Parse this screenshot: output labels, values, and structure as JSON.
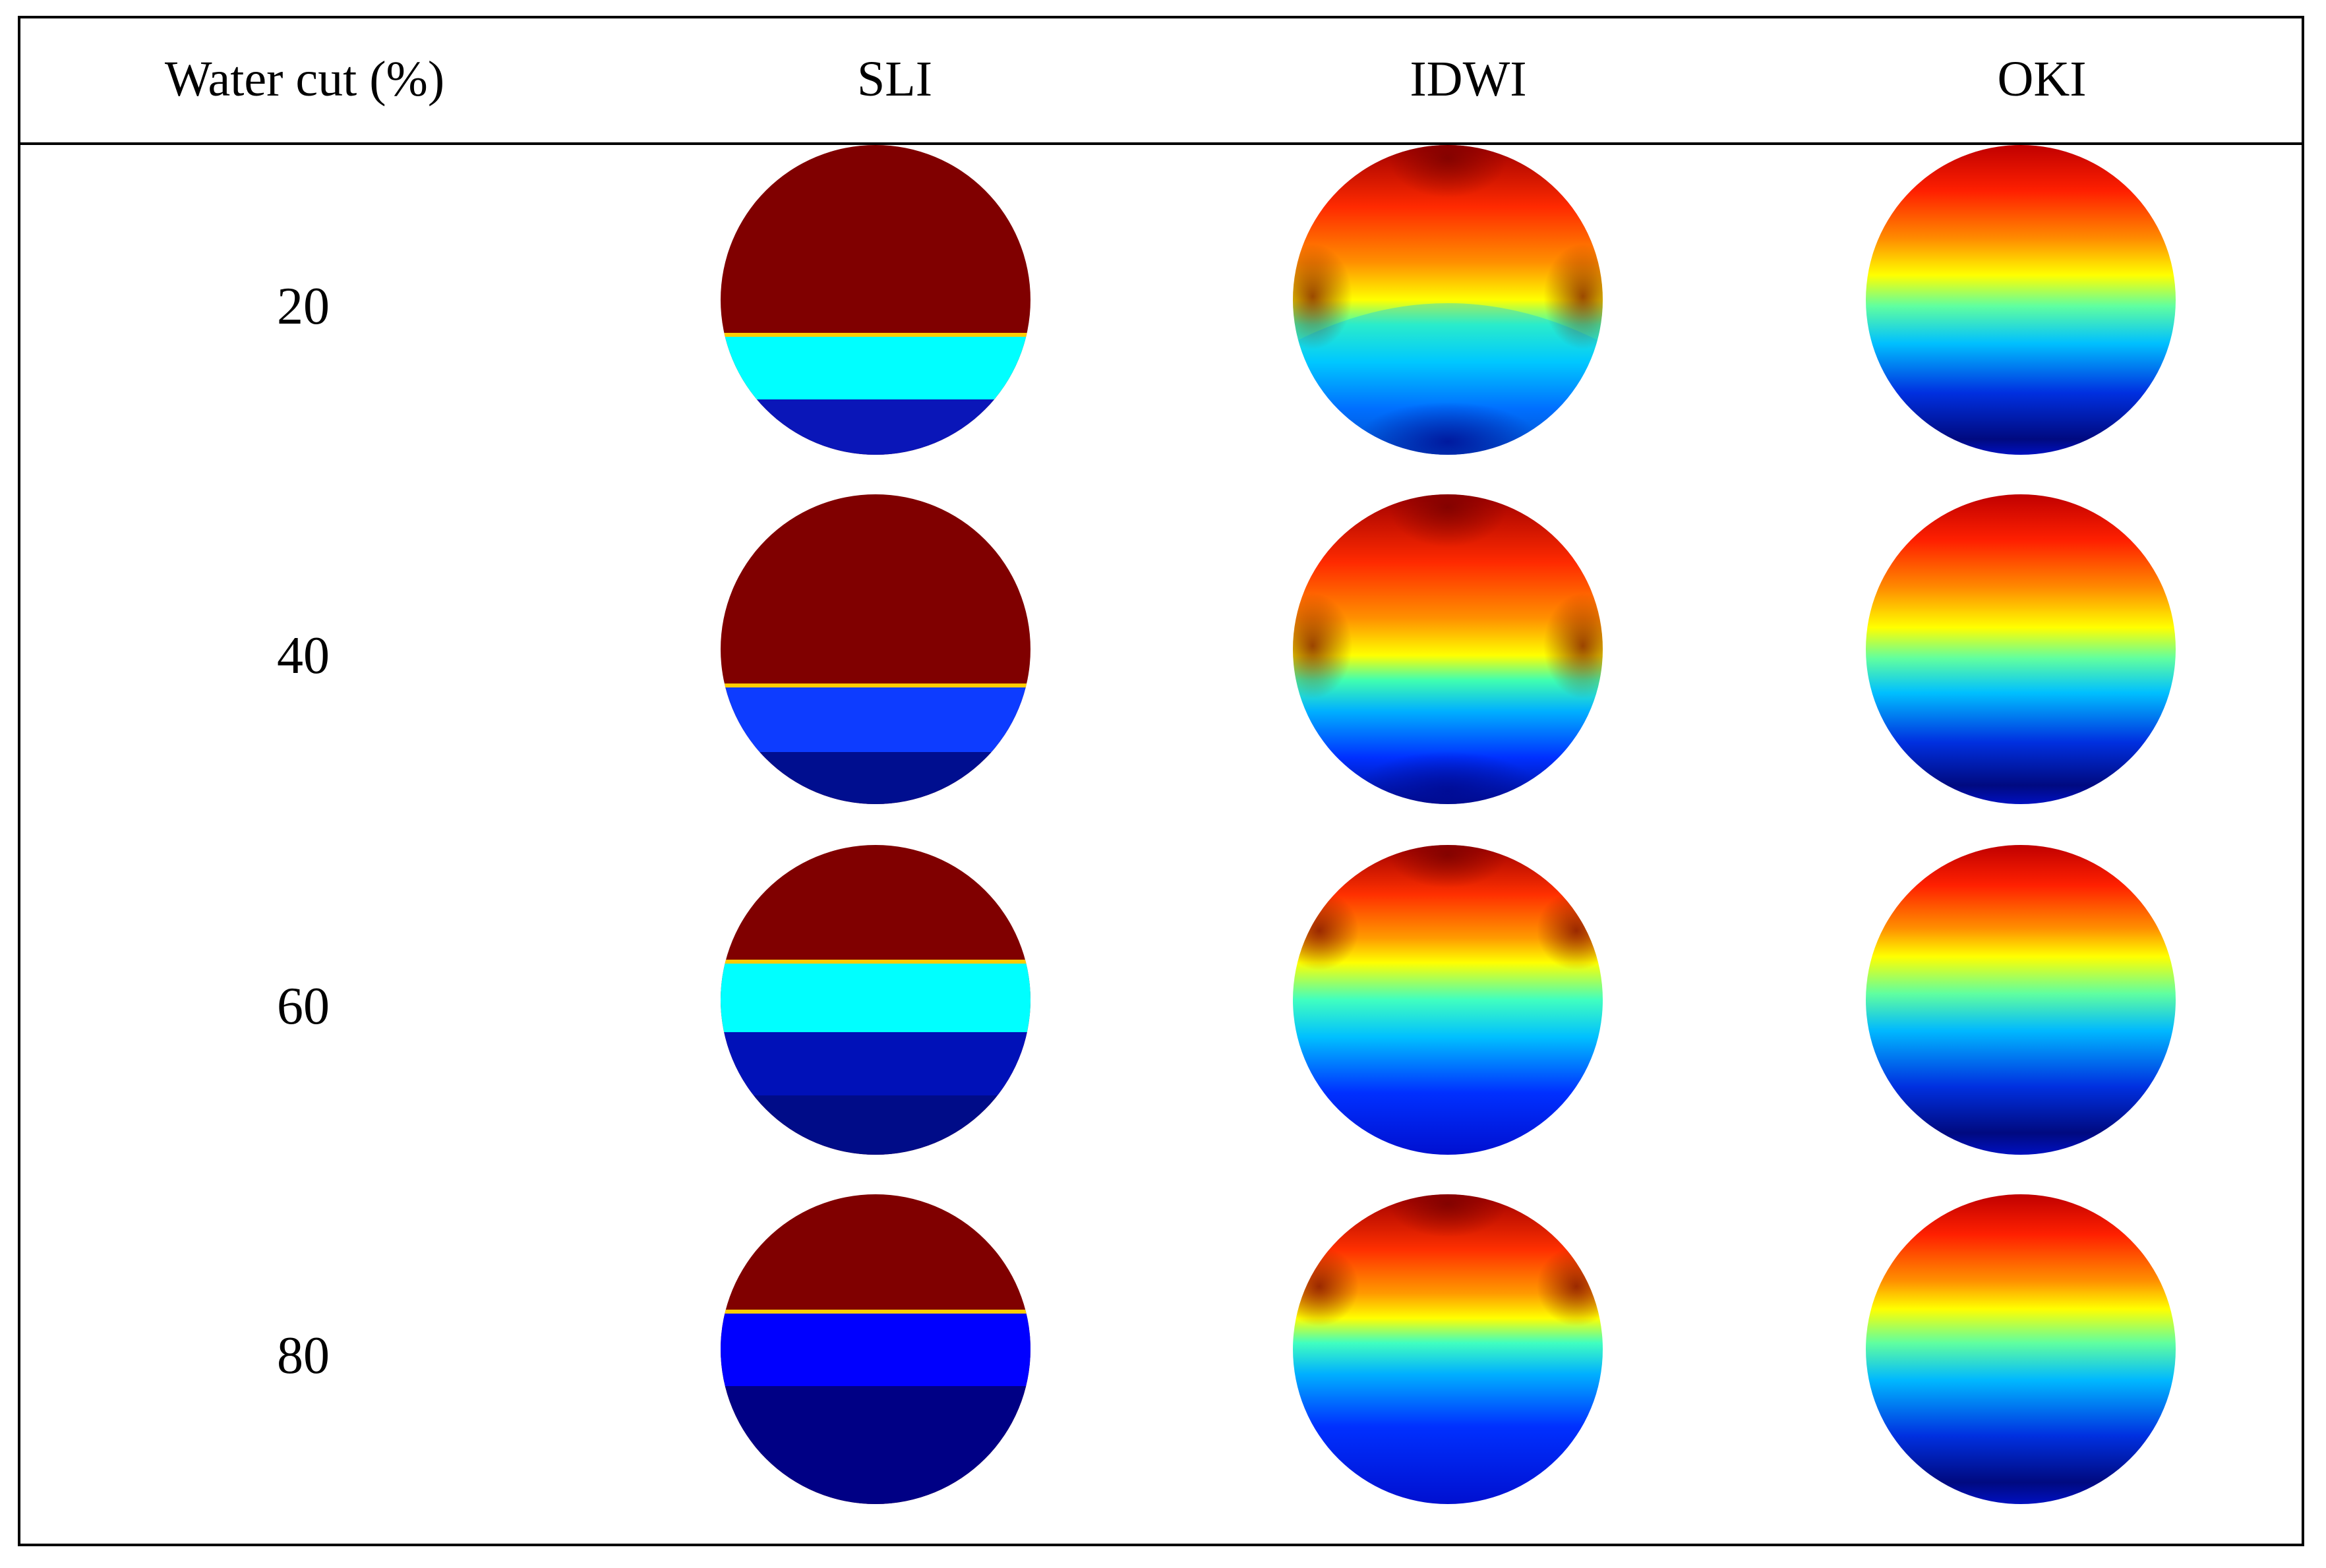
{
  "table": {
    "headers": [
      "Water cut (%)",
      "SLI",
      "IDWI",
      "OKI"
    ],
    "rows": [
      {
        "water_cut": "20"
      },
      {
        "water_cut": "40"
      },
      {
        "water_cut": "60"
      },
      {
        "water_cut": "80"
      }
    ]
  },
  "colors": {
    "oil": "#800000",
    "interface": "#ffff00",
    "cyan": "#00ffff",
    "blue": "#0000ff",
    "navy": "#00008b",
    "red": "#ff0000",
    "orange": "#ff8000"
  }
}
